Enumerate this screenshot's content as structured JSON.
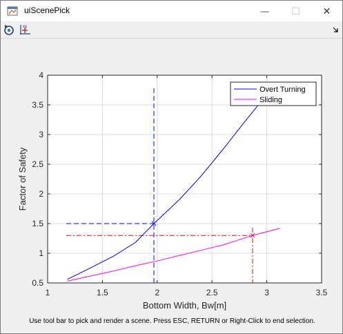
{
  "window": {
    "title": "uiScenePick",
    "minimize_glyph": "—",
    "maximize_glyph": "☐",
    "close_glyph": "✕"
  },
  "toolbar": {
    "buttons": [
      {
        "name": "restore-view-icon"
      },
      {
        "name": "data-cursor-icon"
      }
    ],
    "dock_icon": "dock-arrow-icon"
  },
  "chart_data": {
    "type": "line",
    "xlabel": "Bottom Width, Bw[m]",
    "ylabel": "Factor of Safety",
    "xlim": [
      1,
      3.5
    ],
    "ylim": [
      0.5,
      4
    ],
    "xticks": [
      1,
      1.5,
      2,
      2.5,
      3,
      3.5
    ],
    "xtick_labels": [
      "1",
      "1.5",
      "2",
      "2.5",
      "3",
      "3.5"
    ],
    "yticks": [
      0.5,
      1,
      1.5,
      2,
      2.5,
      3,
      3.5,
      4
    ],
    "ytick_labels": [
      "0.5",
      "1",
      "1.5",
      "2",
      "2.5",
      "3",
      "3.5",
      "4"
    ],
    "grid": true,
    "legend_position": "top-right",
    "series": [
      {
        "name": "Overt Turning",
        "color": "#0000ff",
        "x": [
          1.18,
          1.4,
          1.6,
          1.8,
          1.97,
          2.2,
          2.4,
          2.6,
          2.8,
          2.99
        ],
        "y": [
          0.56,
          0.76,
          0.95,
          1.18,
          1.5,
          1.9,
          2.3,
          2.75,
          3.22,
          3.65
        ]
      },
      {
        "name": "Sliding",
        "color": "#ff00ff",
        "x": [
          1.18,
          1.4,
          1.6,
          1.8,
          2.0,
          2.2,
          2.4,
          2.6,
          2.87,
          3.12
        ],
        "y": [
          0.53,
          0.62,
          0.7,
          0.79,
          0.87,
          0.96,
          1.05,
          1.14,
          1.3,
          1.42
        ]
      }
    ],
    "picks": [
      {
        "x": 1.97,
        "y": 1.5,
        "color": "#0000ff",
        "vline_top": 3.78,
        "style": "dashed"
      },
      {
        "x": 2.87,
        "y": 1.3,
        "color": "#ff0000",
        "vline_top": 1.43,
        "style": "dashdot"
      }
    ]
  },
  "status": {
    "message": "Use tool bar to pick and render a scene. Press ESC, RETURN or Right-Click to end selection."
  }
}
